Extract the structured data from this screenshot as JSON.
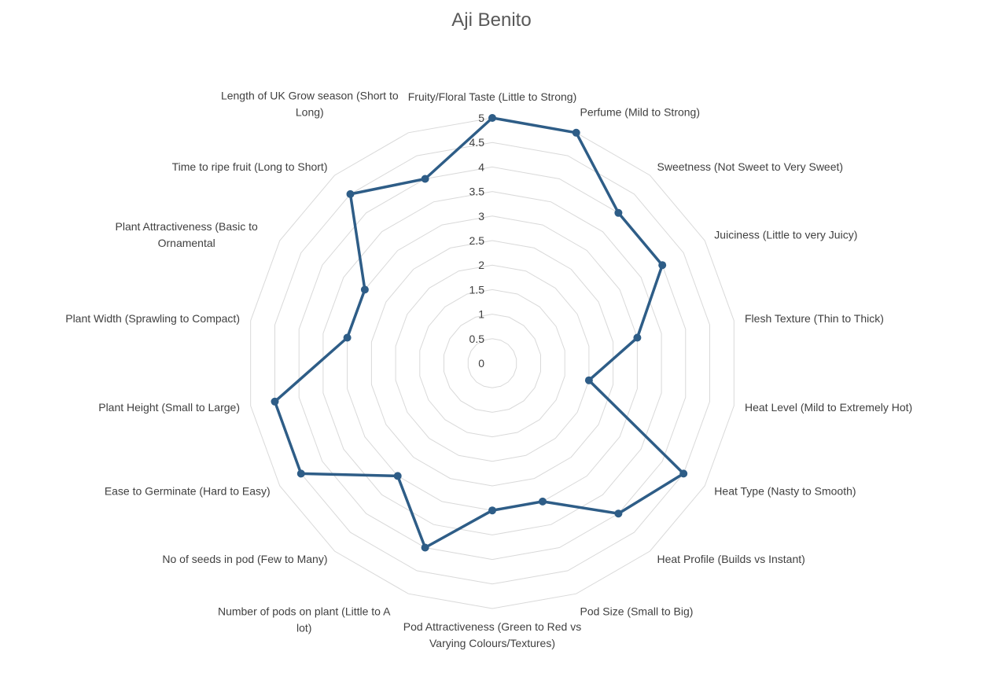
{
  "chart_data": {
    "type": "radar",
    "title": "Aji Benito",
    "radial_range": [
      0,
      5
    ],
    "ticks": [
      "0",
      "0.5",
      "1",
      "1.5",
      "2",
      "2.5",
      "3",
      "3.5",
      "4",
      "4.5",
      "5"
    ],
    "grid": true,
    "legend": "none",
    "categories": [
      "Fruity/Floral Taste (Little to Strong)",
      "Perfume (Mild to Strong)",
      "Sweetness (Not Sweet to Very Sweet)",
      "Juiciness (Little to very Juicy)",
      "Flesh Texture (Thin to Thick)",
      "Heat Level (Mild to Extremely Hot)",
      "Heat Type (Nasty to Smooth)",
      "Heat Profile (Builds vs Instant)",
      "Pod Size (Small to Big)",
      "Pod Attractiveness (Green to Red vs Varying Colours/Textures)",
      "Number of pods on plant (Little to A lot)",
      "No of seeds in pod (Few to Many)",
      "Ease to Germinate (Hard to Easy)",
      "Plant Height (Small to Large)",
      "Plant Width (Sprawling to Compact)",
      "Plant Attractiveness (Basic to Ornamental",
      "Time to ripe fruit (Long to Short)",
      "Length of UK Grow season (Short to Long)"
    ],
    "series": [
      {
        "values": [
          5,
          5,
          4,
          4,
          3,
          2,
          4.5,
          4,
          3,
          3,
          4,
          3,
          4.5,
          4.5,
          3,
          3,
          4.5,
          4
        ],
        "color": "#2e5d87"
      }
    ]
  }
}
